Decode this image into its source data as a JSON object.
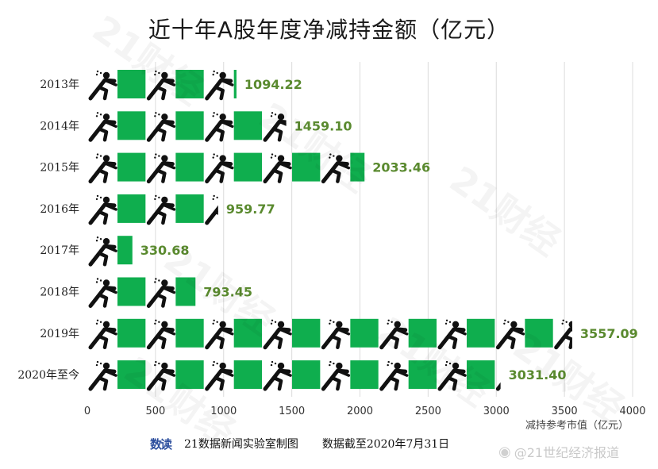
{
  "title": "近十年A股年度净减持金额（亿元）",
  "chart_data": {
    "type": "bar",
    "orientation": "horizontal",
    "categories": [
      "2013年",
      "2014年",
      "2015年",
      "2016年",
      "2017年",
      "2018年",
      "2019年",
      "2020年至今"
    ],
    "values": [
      1094.22,
      1459.1,
      2033.46,
      959.77,
      330.68,
      793.45,
      3557.09,
      3031.4
    ],
    "value_labels": [
      "1094.22",
      "1459.10",
      "2033.46",
      "959.77",
      "330.68",
      "793.45",
      "3557.09",
      "3031.40"
    ],
    "xlim": [
      0,
      4000
    ],
    "xticks": [
      0,
      500,
      1000,
      1500,
      2000,
      2500,
      3000,
      3500,
      4000
    ],
    "xlabel": "减持参考市值（亿元）",
    "grid": "vertical",
    "bar_style": "pictogram",
    "pictogram_unit": 427,
    "bar_color": "#0fae4e",
    "label_color": "#5a8a2f",
    "figure_color": "#111111"
  },
  "footer": {
    "logo_text": "数读",
    "credit": "21数据新闻实验室制图",
    "note": "数据截至2020年7月31日"
  },
  "watermark": {
    "text": "21财经"
  },
  "weibo_credit": "@21世纪经济报道"
}
